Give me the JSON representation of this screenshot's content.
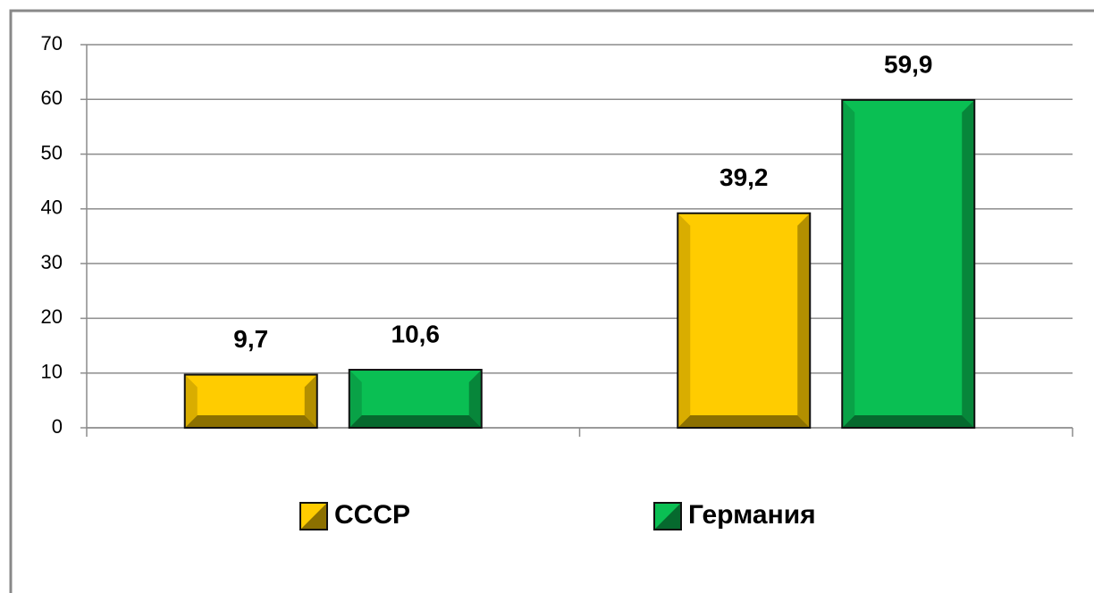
{
  "chart_data": {
    "type": "bar",
    "categories": [
      null,
      null
    ],
    "series": [
      {
        "name": "СССР",
        "color": "#ffcc00",
        "values": [
          9.7,
          39.2
        ],
        "value_labels": [
          "9,7",
          "39,2"
        ]
      },
      {
        "name": "Германия",
        "color": "#0abf53",
        "values": [
          10.6,
          59.9
        ],
        "value_labels": [
          "10,6",
          "59,9"
        ]
      }
    ],
    "ylim": [
      0,
      70
    ],
    "yticks": [
      0,
      10,
      20,
      30,
      40,
      50,
      60,
      70
    ],
    "grid": true,
    "legend": "bottom"
  }
}
